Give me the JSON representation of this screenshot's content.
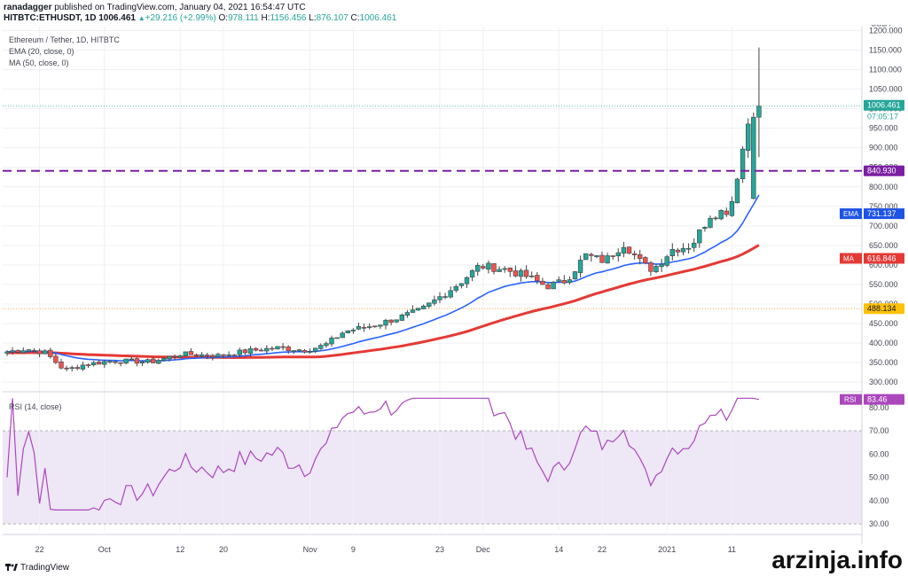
{
  "header": {
    "author": "ranadagger",
    "published_text": "published on TradingView.com, January 04, 2021 16:54:47 UTC",
    "symbol": "HITBTC:ETHUSDT, 1D",
    "last": "1006.461",
    "change": "+29.216 (+2.99%)",
    "o_label": "O:",
    "o": "978.111",
    "h_label": "H:",
    "h": "1156.456",
    "l_label": "L:",
    "l": "876.107",
    "c_label": "C:",
    "c": "1006.461"
  },
  "legend": {
    "title": "Ethereum / Tether, 1D, HITBTC",
    "ema": "EMA (20, close, 0)",
    "ma": "MA (50, close, 0)",
    "rsi": "RSI (14, close)"
  },
  "price_axis": {
    "unit": "USDT",
    "ticks": [
      "1200.000",
      "1150.000",
      "1100.000",
      "1050.000",
      "1000.000",
      "950.000",
      "900.000",
      "850.000",
      "800.000",
      "750.000",
      "700.000",
      "650.000",
      "600.000",
      "550.000",
      "500.000",
      "450.000",
      "400.000",
      "350.000",
      "300.000"
    ],
    "tick_values": [
      1200,
      1150,
      1100,
      1050,
      1000,
      950,
      900,
      850,
      800,
      750,
      700,
      650,
      600,
      550,
      500,
      450,
      400,
      350,
      300
    ]
  },
  "rsi_axis": {
    "ticks": [
      "80.00",
      "70.00",
      "60.00",
      "50.00",
      "40.00",
      "30.00"
    ],
    "tick_values": [
      80,
      70,
      60,
      50,
      40,
      30
    ]
  },
  "time_axis": {
    "labels": [
      "22",
      "Oct",
      "12",
      "20",
      "Nov",
      "9",
      "23",
      "Dec",
      "14",
      "22",
      "2021",
      "11"
    ],
    "label_index": [
      6,
      18,
      32,
      40,
      56,
      64,
      80,
      88,
      102,
      110,
      122,
      134
    ]
  },
  "badges": {
    "last_price": "1006.461",
    "countdown": "07:05:17",
    "resistance": "840.930",
    "ema_label": "EMA",
    "ema_value": "731.137",
    "ma_label": "MA",
    "ma_value": "616.846",
    "support": "488.134",
    "rsi_label": "RSI",
    "rsi_value": "83.46"
  },
  "colors": {
    "up": "#26a69a",
    "down": "#ef5350",
    "ema": "#2962ff",
    "ma": "#e53935",
    "resistance": "#7b1fa2",
    "rsi": "#ab47bc",
    "rsi_band": "#ede7f6",
    "support": "#ff9800"
  },
  "footer": {
    "brand": "TradingView",
    "watermark": "arzinja.info"
  },
  "chart_data": {
    "type": "candlestick",
    "title": "Ethereum / Tether, 1D, HITBTC",
    "ylabel": "USDT",
    "ylim": [
      280,
      1210
    ],
    "resistance_level": 840.93,
    "support_level": 488.134,
    "x_tick_labels": [
      "22",
      "Oct",
      "12",
      "20",
      "Nov",
      "9",
      "23",
      "Dec",
      "14",
      "22",
      "2021",
      "11"
    ],
    "series": [
      {
        "name": "EMA (20, close, 0)",
        "last": 731.137
      },
      {
        "name": "MA (50, close, 0)",
        "last": 616.846
      }
    ],
    "rsi": {
      "name": "RSI (14, close)",
      "ylim": [
        27,
        86
      ],
      "band": [
        30,
        70
      ],
      "last": 83.46
    }
  }
}
